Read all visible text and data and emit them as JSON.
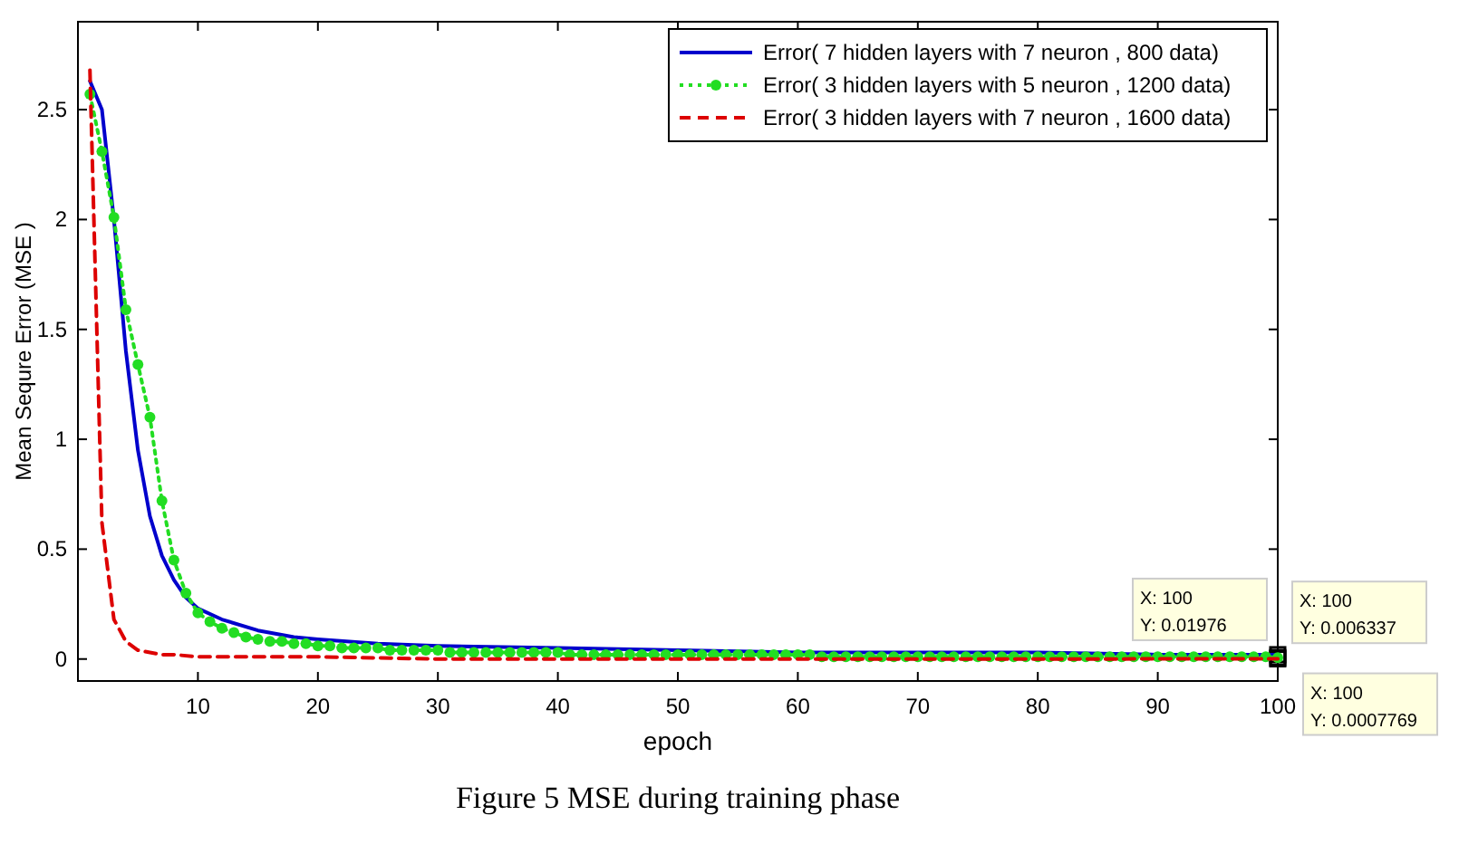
{
  "chart_data": {
    "type": "line",
    "xlabel": "epoch",
    "ylabel": "Mean Sequre Error (MSE )",
    "xlim": [
      0,
      100
    ],
    "ylim": [
      -0.1,
      2.9
    ],
    "xticks": [
      10,
      20,
      30,
      40,
      50,
      60,
      70,
      80,
      90,
      100
    ],
    "yticks": [
      0,
      0.5,
      1,
      1.5,
      2,
      2.5
    ],
    "grid": false,
    "legend": "top right",
    "series": [
      {
        "name": "Error( 7 hidden layers with 7 neuron , 800 data)",
        "color": "#0000cc",
        "line_style": "solid",
        "marker": "none",
        "x": [
          1,
          2,
          3,
          4,
          5,
          6,
          7,
          8,
          9,
          10,
          12,
          15,
          18,
          20,
          25,
          30,
          40,
          50,
          60,
          70,
          80,
          90,
          100
        ],
        "values": [
          2.63,
          2.5,
          2.0,
          1.4,
          0.95,
          0.65,
          0.47,
          0.36,
          0.28,
          0.23,
          0.18,
          0.13,
          0.1,
          0.09,
          0.07,
          0.06,
          0.05,
          0.04,
          0.03,
          0.03,
          0.03,
          0.02,
          0.01976
        ]
      },
      {
        "name": "Error( 3 hidden layers with 5 neuron , 1200 data)",
        "color": "#22dd22",
        "line_style": "dotted",
        "marker": "circle",
        "x": [
          1,
          2,
          3,
          4,
          5,
          6,
          7,
          8,
          9,
          10,
          11,
          12,
          13,
          14,
          15,
          16,
          17,
          18,
          19,
          20,
          21,
          22,
          23,
          24,
          25,
          26,
          27,
          28,
          29,
          30,
          31,
          32,
          33,
          34,
          35,
          36,
          37,
          38,
          39,
          40,
          41,
          42,
          43,
          44,
          45,
          46,
          47,
          48,
          49,
          50,
          51,
          52,
          53,
          54,
          55,
          56,
          57,
          58,
          59,
          60,
          61,
          62,
          63,
          64,
          65,
          66,
          67,
          68,
          69,
          70,
          71,
          72,
          73,
          74,
          75,
          76,
          77,
          78,
          79,
          80,
          81,
          82,
          83,
          84,
          85,
          86,
          87,
          88,
          89,
          90,
          91,
          92,
          93,
          94,
          95,
          96,
          97,
          98,
          99,
          100
        ],
        "values": [
          2.57,
          2.31,
          2.01,
          1.59,
          1.34,
          1.1,
          0.72,
          0.45,
          0.3,
          0.21,
          0.17,
          0.14,
          0.12,
          0.1,
          0.09,
          0.08,
          0.08,
          0.07,
          0.07,
          0.06,
          0.06,
          0.05,
          0.05,
          0.05,
          0.05,
          0.04,
          0.04,
          0.04,
          0.04,
          0.04,
          0.03,
          0.03,
          0.03,
          0.03,
          0.03,
          0.03,
          0.03,
          0.03,
          0.03,
          0.03,
          0.02,
          0.02,
          0.02,
          0.02,
          0.02,
          0.02,
          0.02,
          0.02,
          0.02,
          0.02,
          0.02,
          0.02,
          0.02,
          0.02,
          0.02,
          0.02,
          0.02,
          0.02,
          0.02,
          0.02,
          0.02,
          0.01,
          0.01,
          0.01,
          0.01,
          0.01,
          0.01,
          0.01,
          0.01,
          0.01,
          0.01,
          0.01,
          0.01,
          0.01,
          0.01,
          0.01,
          0.01,
          0.01,
          0.01,
          0.01,
          0.01,
          0.01,
          0.01,
          0.01,
          0.01,
          0.01,
          0.01,
          0.01,
          0.01,
          0.01,
          0.01,
          0.01,
          0.01,
          0.01,
          0.01,
          0.01,
          0.01,
          0.01,
          0.01,
          0.006337
        ]
      },
      {
        "name": "Error( 3 hidden layers with 7 neuron , 1600 data)",
        "color": "#dd0000",
        "line_style": "dashed",
        "marker": "none",
        "x": [
          1,
          2,
          3,
          4,
          5,
          6,
          7,
          8,
          10,
          15,
          20,
          30,
          50,
          70,
          100
        ],
        "values": [
          2.68,
          0.62,
          0.18,
          0.08,
          0.04,
          0.03,
          0.02,
          0.02,
          0.01,
          0.01,
          0.01,
          0,
          0,
          0,
          0.0007769
        ]
      }
    ],
    "annotations": [
      "X: 100\nY: 0.01976",
      "X: 100\nY: 0.006337",
      "X: 100\nY: 0.0007769",
      "Figure 5 MSE during training phase"
    ]
  }
}
